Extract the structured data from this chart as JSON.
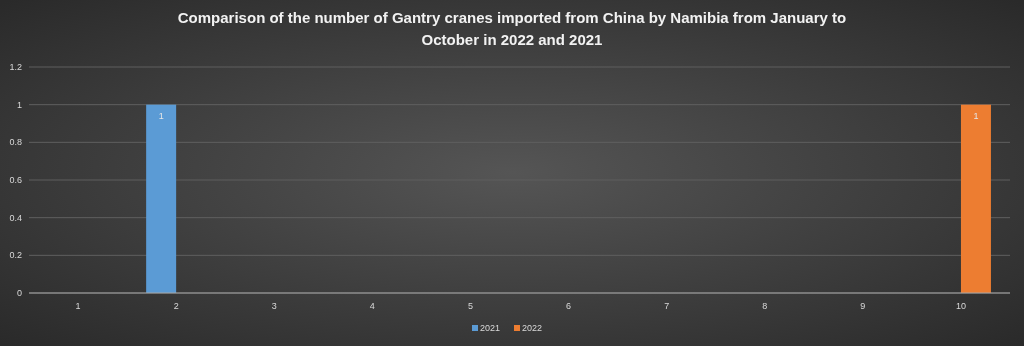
{
  "chart_data": {
    "type": "bar",
    "title": "Comparison of the number of Gantry cranes imported from China by Namibia from January to October in 2022 and 2021",
    "categories": [
      "1",
      "2",
      "3",
      "4",
      "5",
      "6",
      "7",
      "8",
      "9",
      "10"
    ],
    "series": [
      {
        "name": "2021",
        "color": "#5b9bd5",
        "values": [
          0,
          1,
          0,
          0,
          0,
          0,
          0,
          0,
          0,
          0
        ],
        "value_labels": [
          null,
          "1",
          null,
          null,
          null,
          null,
          null,
          null,
          null,
          null
        ]
      },
      {
        "name": "2022",
        "color": "#ed7d31",
        "values": [
          0,
          0,
          0,
          0,
          0,
          0,
          0,
          0,
          0,
          1
        ],
        "value_labels": [
          null,
          null,
          null,
          null,
          null,
          null,
          null,
          null,
          null,
          "1"
        ]
      }
    ],
    "ylim": [
      0,
      1.2
    ],
    "yticks": [
      0,
      0.2,
      0.4,
      0.6,
      0.8,
      1,
      1.2
    ],
    "grid": "y",
    "legend": "bottom"
  }
}
